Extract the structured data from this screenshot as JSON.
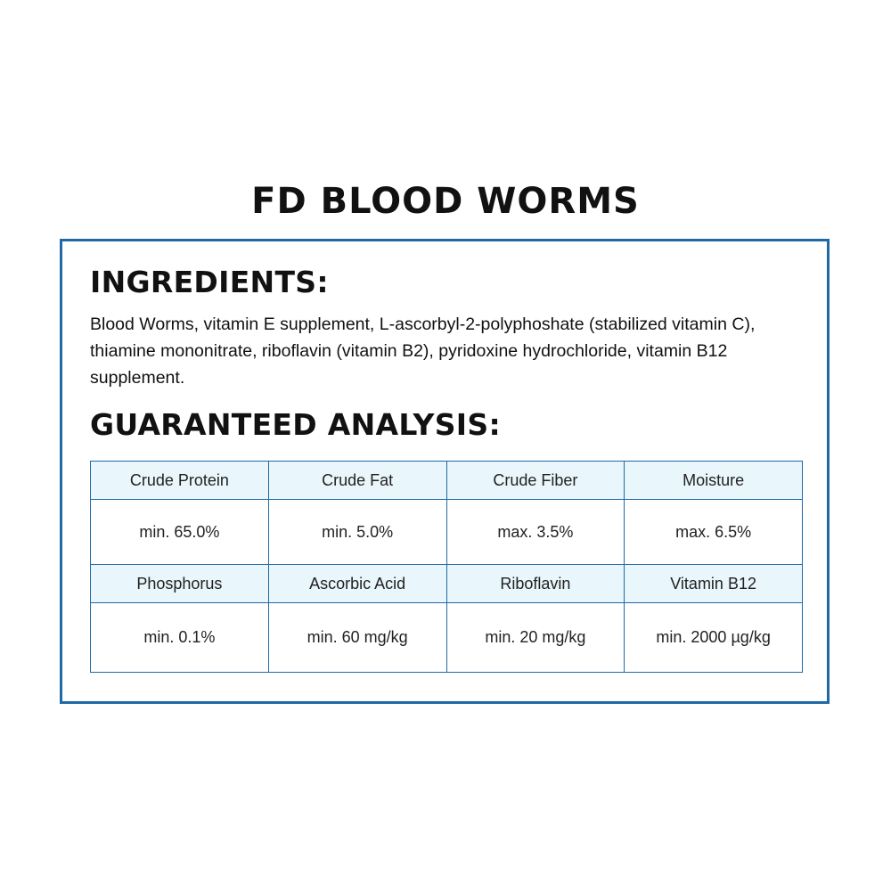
{
  "title": "FD BLOOD WORMS",
  "ingredients": {
    "heading": "INGREDIENTS:",
    "text": "Blood Worms, vitamin E supplement, L-ascorbyl-2-polyphoshate (stabilized vitamin C), thiamine mononitrate, riboflavin (vitamin B2), pyridoxine hydrochloride, vitamin B12 supplement."
  },
  "analysis": {
    "heading": "GUARANTEED ANALYSIS:",
    "rows": [
      [
        {
          "label": "Crude Protein",
          "value": "min. 65.0%"
        },
        {
          "label": "Crude Fat",
          "value": "min. 5.0%"
        },
        {
          "label": "Crude Fiber",
          "value": "max. 3.5%"
        },
        {
          "label": "Moisture",
          "value": "max. 6.5%"
        }
      ],
      [
        {
          "label": "Phosphorus",
          "value": "min. 0.1%"
        },
        {
          "label": "Ascorbic Acid",
          "value": "min. 60 mg/kg"
        },
        {
          "label": "Riboflavin",
          "value": "min. 20 mg/kg"
        },
        {
          "label": "Vitamin B12",
          "value": "min. 2000 µg/kg"
        }
      ]
    ]
  },
  "colors": {
    "border": "#1f6aa6",
    "label_background": "#e9f6fb",
    "text": "#111111"
  }
}
